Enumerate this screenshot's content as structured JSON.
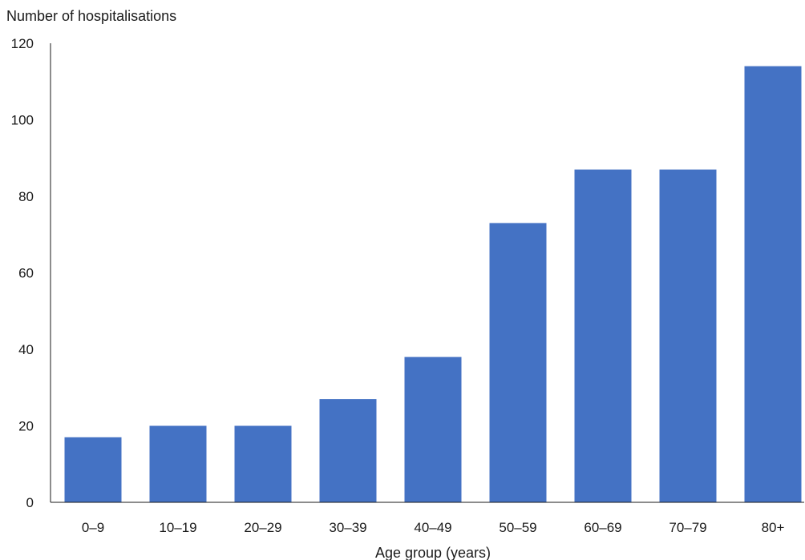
{
  "chart_data": {
    "type": "bar",
    "ylabel": "Number of hospitalisations",
    "xlabel": "Age group (years)",
    "categories": [
      "0–9",
      "10–19",
      "20–29",
      "30–39",
      "40–49",
      "50–59",
      "60–69",
      "70–79",
      "80+"
    ],
    "values": [
      17,
      20,
      20,
      27,
      38,
      73,
      87,
      87,
      114
    ],
    "ylim": [
      0,
      120
    ],
    "yticks": [
      "0",
      "20",
      "40",
      "60",
      "80",
      "100",
      "120"
    ],
    "bar_color": "#4472C4",
    "grid": false,
    "legend": "none"
  }
}
